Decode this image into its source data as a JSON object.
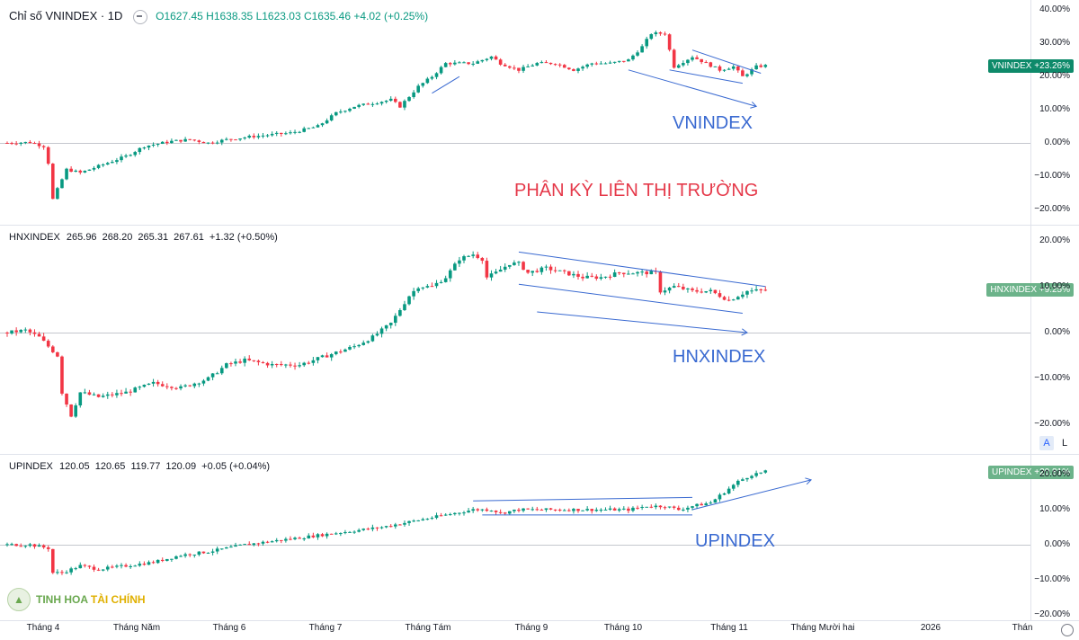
{
  "panes": [
    {
      "key": "vn",
      "symbol": "Chỉ số VNINDEX · 1D",
      "ohlc": {
        "o": "O1627.45",
        "h": "H1638.35",
        "l": "L1623.03",
        "c": "C1635.46",
        "chg": "+4.02 (+0.25%)"
      },
      "price_tag": "VNINDEX +23.26%",
      "tag_color": "#0e8a6a",
      "axis_ticks": [
        "40.00%",
        "30.00%",
        "20.00%",
        "10.00%",
        "0.00%",
        "−10.00%",
        "−20.00%"
      ],
      "annotation": "VNINDEX"
    },
    {
      "key": "hnx",
      "symbol": "HNXINDEX",
      "ohlc_line": "265.96  268.20  265.31  267.61  +1.32 (+0.50%)",
      "price_tag": "HNXINDEX +9.25%",
      "tag_color": "#6cb38a",
      "axis_ticks": [
        "20.00%",
        "10.00%",
        "0.00%",
        "−10.00%",
        "−20.00%"
      ],
      "annotation": "HNXINDEX"
    },
    {
      "key": "up",
      "symbol": "UPINDEX",
      "ohlc_line": "120.05  120.65  119.77  120.09  +0.05 (+0.04%)",
      "price_tag": "UPINDEX +20.81%",
      "tag_color": "#6cb38a",
      "axis_ticks": [
        "20.00%",
        "10.00%",
        "0.00%",
        "−10.00%",
        "−20.00%"
      ],
      "annotation": "UPINDEX"
    }
  ],
  "main_annotation": "PHÂN KỲ LIÊN THỊ TRƯỜNG",
  "x_labels": [
    "Tháng 4",
    "Tháng Năm",
    "Tháng 6",
    "Tháng 7",
    "Tháng Tám",
    "Tháng 9",
    "Tháng 10",
    "Tháng 11",
    "Tháng Mười hai",
    "2026",
    "Thán"
  ],
  "buttons": {
    "auto": "A",
    "log": "L"
  },
  "logo": {
    "part1": "TINH HOA ",
    "part2": "TÀI CHÍNH"
  },
  "colors": {
    "up": "#089981",
    "down": "#f23645",
    "trend": "#3a6ad1"
  },
  "chart_data": [
    {
      "type": "candlestick",
      "series": [
        {
          "name": "VNINDEX",
          "unit": "% change"
        }
      ],
      "title": "Chỉ số VNINDEX · 1D",
      "ylim": [
        -22,
        41
      ],
      "close_path": [
        [
          0,
          0
        ],
        [
          5,
          0.2
        ],
        [
          8,
          -1
        ],
        [
          9,
          -6
        ],
        [
          10,
          -17
        ],
        [
          11,
          -14
        ],
        [
          13,
          -8
        ],
        [
          16,
          -9
        ],
        [
          20,
          -7
        ],
        [
          26,
          -4
        ],
        [
          30,
          -1
        ],
        [
          36,
          0.5
        ],
        [
          40,
          1
        ],
        [
          44,
          0
        ],
        [
          48,
          1
        ],
        [
          54,
          2
        ],
        [
          62,
          3
        ],
        [
          68,
          5
        ],
        [
          72,
          9
        ],
        [
          76,
          11
        ],
        [
          80,
          12
        ],
        [
          84,
          13
        ],
        [
          86,
          11
        ],
        [
          88,
          14
        ],
        [
          90,
          17
        ],
        [
          93,
          20
        ],
        [
          96,
          24
        ],
        [
          99,
          24
        ],
        [
          102,
          24
        ],
        [
          106,
          26
        ],
        [
          108,
          24
        ],
        [
          112,
          22
        ],
        [
          116,
          24
        ],
        [
          120,
          24
        ],
        [
          124,
          22
        ],
        [
          128,
          24
        ],
        [
          132,
          24
        ],
        [
          136,
          25
        ],
        [
          139,
          29
        ],
        [
          141,
          33
        ],
        [
          144,
          33
        ],
        [
          146,
          23
        ],
        [
          150,
          26
        ],
        [
          153,
          24
        ],
        [
          156,
          22
        ],
        [
          159,
          23
        ],
        [
          161,
          20
        ],
        [
          164,
          23
        ],
        [
          166,
          23.3
        ]
      ],
      "trendlines": [
        {
          "from": [
            136,
            22
          ],
          "to": [
            164,
            11
          ]
        },
        {
          "from": [
            150,
            28
          ],
          "to": [
            165,
            21
          ]
        },
        {
          "from": [
            145,
            22
          ],
          "to": [
            161,
            18
          ]
        },
        {
          "from": [
            93,
            15
          ],
          "to": [
            99,
            20
          ]
        }
      ]
    },
    {
      "type": "candlestick",
      "series": [
        {
          "name": "HNXINDEX",
          "unit": "% change"
        }
      ],
      "ylim": [
        -22,
        22
      ],
      "close_path": [
        [
          0,
          0
        ],
        [
          4,
          0.5
        ],
        [
          7,
          -1
        ],
        [
          9,
          -3
        ],
        [
          11,
          -5
        ],
        [
          12,
          -13
        ],
        [
          14,
          -18
        ],
        [
          16,
          -13
        ],
        [
          20,
          -14
        ],
        [
          26,
          -13
        ],
        [
          32,
          -11
        ],
        [
          38,
          -12
        ],
        [
          44,
          -10
        ],
        [
          48,
          -7
        ],
        [
          52,
          -6
        ],
        [
          58,
          -7
        ],
        [
          64,
          -7
        ],
        [
          70,
          -5
        ],
        [
          76,
          -3
        ],
        [
          80,
          -1
        ],
        [
          84,
          2
        ],
        [
          86,
          5
        ],
        [
          88,
          8
        ],
        [
          90,
          10
        ],
        [
          93,
          10
        ],
        [
          96,
          12
        ],
        [
          99,
          16
        ],
        [
          102,
          17
        ],
        [
          104,
          16
        ],
        [
          105,
          12
        ],
        [
          107,
          13
        ],
        [
          110,
          15
        ],
        [
          112,
          15
        ],
        [
          114,
          13
        ],
        [
          118,
          14
        ],
        [
          122,
          13
        ],
        [
          126,
          12
        ],
        [
          130,
          12
        ],
        [
          134,
          13
        ],
        [
          138,
          13
        ],
        [
          142,
          13
        ],
        [
          143,
          9
        ],
        [
          146,
          10
        ],
        [
          150,
          9
        ],
        [
          154,
          9
        ],
        [
          156,
          8
        ],
        [
          158,
          7
        ],
        [
          160,
          8
        ],
        [
          162,
          9
        ],
        [
          166,
          9.25
        ]
      ],
      "trendlines": [
        {
          "from": [
            112,
            17.5
          ],
          "to": [
            166,
            10
          ]
        },
        {
          "from": [
            112,
            10.5
          ],
          "to": [
            161,
            4.2
          ]
        },
        {
          "from": [
            116,
            4.5
          ],
          "to": [
            162,
            0
          ]
        }
      ]
    },
    {
      "type": "candlestick",
      "series": [
        {
          "name": "UPINDEX",
          "unit": "% change"
        }
      ],
      "ylim": [
        -22,
        24
      ],
      "close_path": [
        [
          0,
          0
        ],
        [
          5,
          0
        ],
        [
          9,
          -1
        ],
        [
          10,
          -8
        ],
        [
          12,
          -8
        ],
        [
          16,
          -6
        ],
        [
          20,
          -7
        ],
        [
          26,
          -6
        ],
        [
          32,
          -5
        ],
        [
          38,
          -3
        ],
        [
          44,
          -2
        ],
        [
          48,
          -1
        ],
        [
          52,
          0
        ],
        [
          58,
          1
        ],
        [
          64,
          2
        ],
        [
          70,
          3
        ],
        [
          76,
          4
        ],
        [
          82,
          5
        ],
        [
          86,
          6
        ],
        [
          90,
          7
        ],
        [
          94,
          8
        ],
        [
          98,
          9
        ],
        [
          102,
          10
        ],
        [
          106,
          10
        ],
        [
          108,
          9
        ],
        [
          112,
          10
        ],
        [
          116,
          10
        ],
        [
          120,
          10
        ],
        [
          124,
          10
        ],
        [
          130,
          10
        ],
        [
          136,
          10
        ],
        [
          140,
          11
        ],
        [
          144,
          11
        ],
        [
          147,
          10
        ],
        [
          150,
          11
        ],
        [
          154,
          12
        ],
        [
          156,
          14
        ],
        [
          158,
          16
        ],
        [
          160,
          18
        ],
        [
          163,
          20
        ],
        [
          166,
          20.8
        ]
      ],
      "trendlines": [
        {
          "from": [
            102,
            12.5
          ],
          "to": [
            150,
            13.5
          ]
        },
        {
          "from": [
            104,
            8.5
          ],
          "to": [
            150,
            8.5
          ]
        },
        {
          "from": [
            150,
            10
          ],
          "to": [
            176,
            18.5
          ]
        }
      ]
    }
  ]
}
